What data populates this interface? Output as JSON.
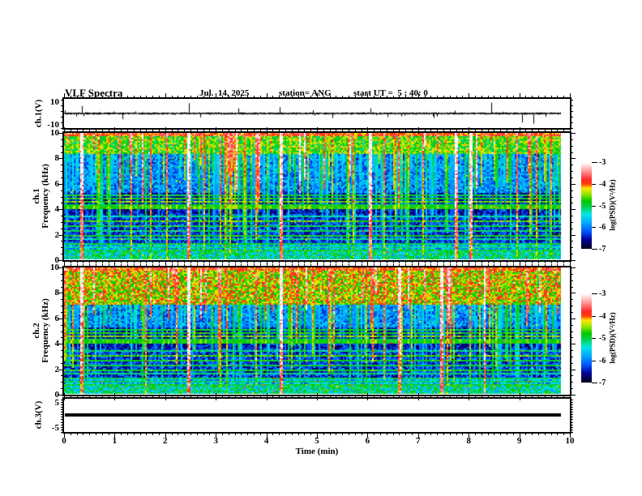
{
  "header": {
    "title": "VLF Spectra",
    "date": "Jul.  14, 2025",
    "station": "station= ANG",
    "start_ut": "start UT =  5 : 40: 0"
  },
  "xaxis": {
    "label": "Time (min)",
    "lim": [
      0,
      10
    ],
    "minor_step": 0.125,
    "data_end_min": 9.82,
    "ticks": [
      {
        "v": 0,
        "label": "0"
      },
      {
        "v": 1,
        "label": "1"
      },
      {
        "v": 2,
        "label": "2"
      },
      {
        "v": 3,
        "label": "3"
      },
      {
        "v": 4,
        "label": "4"
      },
      {
        "v": 5,
        "label": "5"
      },
      {
        "v": 6,
        "label": "6"
      },
      {
        "v": 7,
        "label": "7"
      },
      {
        "v": 8,
        "label": "8"
      },
      {
        "v": 9,
        "label": "9"
      },
      {
        "v": 10,
        "label": "10"
      }
    ]
  },
  "colorbar": {
    "label": "log(PSD)(V²/Hz)",
    "lim": [
      -7,
      -3
    ],
    "ticks": [
      {
        "v": -3,
        "label": "-3"
      },
      {
        "v": -4,
        "label": "-4"
      },
      {
        "v": -5,
        "label": "-5"
      },
      {
        "v": -6,
        "label": "-6"
      },
      {
        "v": -7,
        "label": "-7"
      }
    ]
  },
  "colormap_stops": [
    [
      0.0,
      0,
      0,
      32
    ],
    [
      0.1,
      0,
      0,
      150
    ],
    [
      0.2,
      0,
      90,
      255
    ],
    [
      0.3,
      0,
      170,
      255
    ],
    [
      0.4,
      0,
      230,
      230
    ],
    [
      0.48,
      0,
      210,
      80
    ],
    [
      0.55,
      0,
      200,
      0
    ],
    [
      0.63,
      150,
      230,
      0
    ],
    [
      0.7,
      255,
      230,
      0
    ],
    [
      0.75,
      255,
      60,
      10
    ],
    [
      0.8,
      255,
      40,
      40
    ],
    [
      0.88,
      255,
      130,
      130
    ],
    [
      0.95,
      255,
      205,
      205
    ],
    [
      1.0,
      255,
      255,
      255
    ]
  ],
  "chart_data": [
    {
      "name": "ch1_waveform",
      "type": "line",
      "ylabel": "ch.1(V)",
      "ylim": [
        -12.8,
        12.8
      ],
      "minor_step": 5,
      "yticks": [
        {
          "v": 10,
          "label": "10"
        },
        {
          "v": -10,
          "label": "-10"
        }
      ],
      "baseline_noise_v": 0.9,
      "seed": 911,
      "description": "noisy baseline near 0 V with impulsive sferic spikes",
      "spikes": [
        {
          "t": 0.35,
          "v": 6.5
        },
        {
          "t": 1.15,
          "v": -5
        },
        {
          "t": 2.47,
          "v": 9
        },
        {
          "t": 3.45,
          "v": 4.5
        },
        {
          "t": 4.27,
          "v": 5.5
        },
        {
          "t": 5.3,
          "v": -4
        },
        {
          "t": 6.05,
          "v": 4.5
        },
        {
          "t": 7.3,
          "v": -4
        },
        {
          "t": 8.44,
          "v": 9.5
        },
        {
          "t": 9.05,
          "v": -8
        },
        {
          "t": 9.28,
          "v": -9
        }
      ]
    },
    {
      "name": "ch1_spectrogram",
      "type": "heatmap",
      "ylabel_lines": [
        "ch.1",
        "Frequency (kHz)"
      ],
      "ylim": [
        0,
        10
      ],
      "minor_step": 0.5,
      "clim": [
        -7,
        -3
      ],
      "seed": 20250714,
      "yticks": [
        {
          "v": 0,
          "label": "0"
        },
        {
          "v": 2,
          "label": "2"
        },
        {
          "v": 4,
          "label": "4"
        },
        {
          "v": 6,
          "label": "6"
        },
        {
          "v": 8,
          "label": "8"
        },
        {
          "v": 10,
          "label": "10"
        }
      ],
      "hot_band_top_khz": 8.3,
      "hot_band_base": -5.3,
      "interference_lines_khz": [
        {
          "f": 0.65,
          "w": 1.2
        },
        {
          "f": 0.95,
          "w": 1.0
        },
        {
          "f": 1.25,
          "w": 1.2
        },
        {
          "f": 1.55,
          "w": 1.0
        },
        {
          "f": 1.9,
          "w": 1.3
        },
        {
          "f": 2.25,
          "w": 1.1
        },
        {
          "f": 2.6,
          "w": 1.2
        },
        {
          "f": 3.0,
          "w": 1.5
        },
        {
          "f": 3.45,
          "w": 0.9
        },
        {
          "f": 4.1,
          "w": 1.5
        },
        {
          "f": 4.35,
          "w": 1.3
        },
        {
          "f": 4.6,
          "w": 1.6
        },
        {
          "f": 4.85,
          "w": 1.4
        },
        {
          "f": 5.05,
          "w": 1.2
        }
      ],
      "strong_burst_times_min": [
        0.33,
        2.45,
        4.27,
        6.05,
        7.73,
        8.02
      ]
    },
    {
      "name": "ch2_spectrogram",
      "type": "heatmap",
      "ylabel_lines": [
        "ch.2",
        "Frequency (kHz)"
      ],
      "ylim": [
        0,
        10
      ],
      "minor_step": 0.5,
      "clim": [
        -7,
        -3
      ],
      "seed": 20250715,
      "yticks": [
        {
          "v": 0,
          "label": "0"
        },
        {
          "v": 2,
          "label": "2"
        },
        {
          "v": 4,
          "label": "4"
        },
        {
          "v": 6,
          "label": "6"
        },
        {
          "v": 8,
          "label": "8"
        },
        {
          "v": 10,
          "label": "10"
        }
      ],
      "hot_band_top_khz": 7.0,
      "hot_band_base": -5.0,
      "interference_lines_khz": [
        {
          "f": 0.65,
          "w": 1.2
        },
        {
          "f": 0.95,
          "w": 1.1
        },
        {
          "f": 1.25,
          "w": 1.1
        },
        {
          "f": 1.55,
          "w": 1.0
        },
        {
          "f": 1.9,
          "w": 1.3
        },
        {
          "f": 2.25,
          "w": 1.2
        },
        {
          "f": 2.6,
          "w": 1.3
        },
        {
          "f": 3.0,
          "w": 1.5
        },
        {
          "f": 3.45,
          "w": 1.0
        },
        {
          "f": 4.1,
          "w": 1.4
        },
        {
          "f": 4.35,
          "w": 1.3
        },
        {
          "f": 4.6,
          "w": 1.6
        },
        {
          "f": 4.85,
          "w": 1.4
        },
        {
          "f": 5.05,
          "w": 1.2
        }
      ],
      "strong_burst_times_min": [
        0.33,
        2.45,
        4.27,
        6.62,
        7.45,
        8.3
      ]
    },
    {
      "name": "ch3_waveform",
      "type": "line",
      "ylabel": "ch.3(V)",
      "ylim": [
        -6.6,
        6.6
      ],
      "minor_step": 1,
      "yticks": [
        {
          "v": 5,
          "label": "5"
        },
        {
          "v": -5,
          "label": "-5"
        }
      ],
      "flat_value_v": 0.3,
      "line_thickness_px": 4,
      "seed": 7,
      "description": "flat trace near 0 V (no signal)"
    }
  ]
}
